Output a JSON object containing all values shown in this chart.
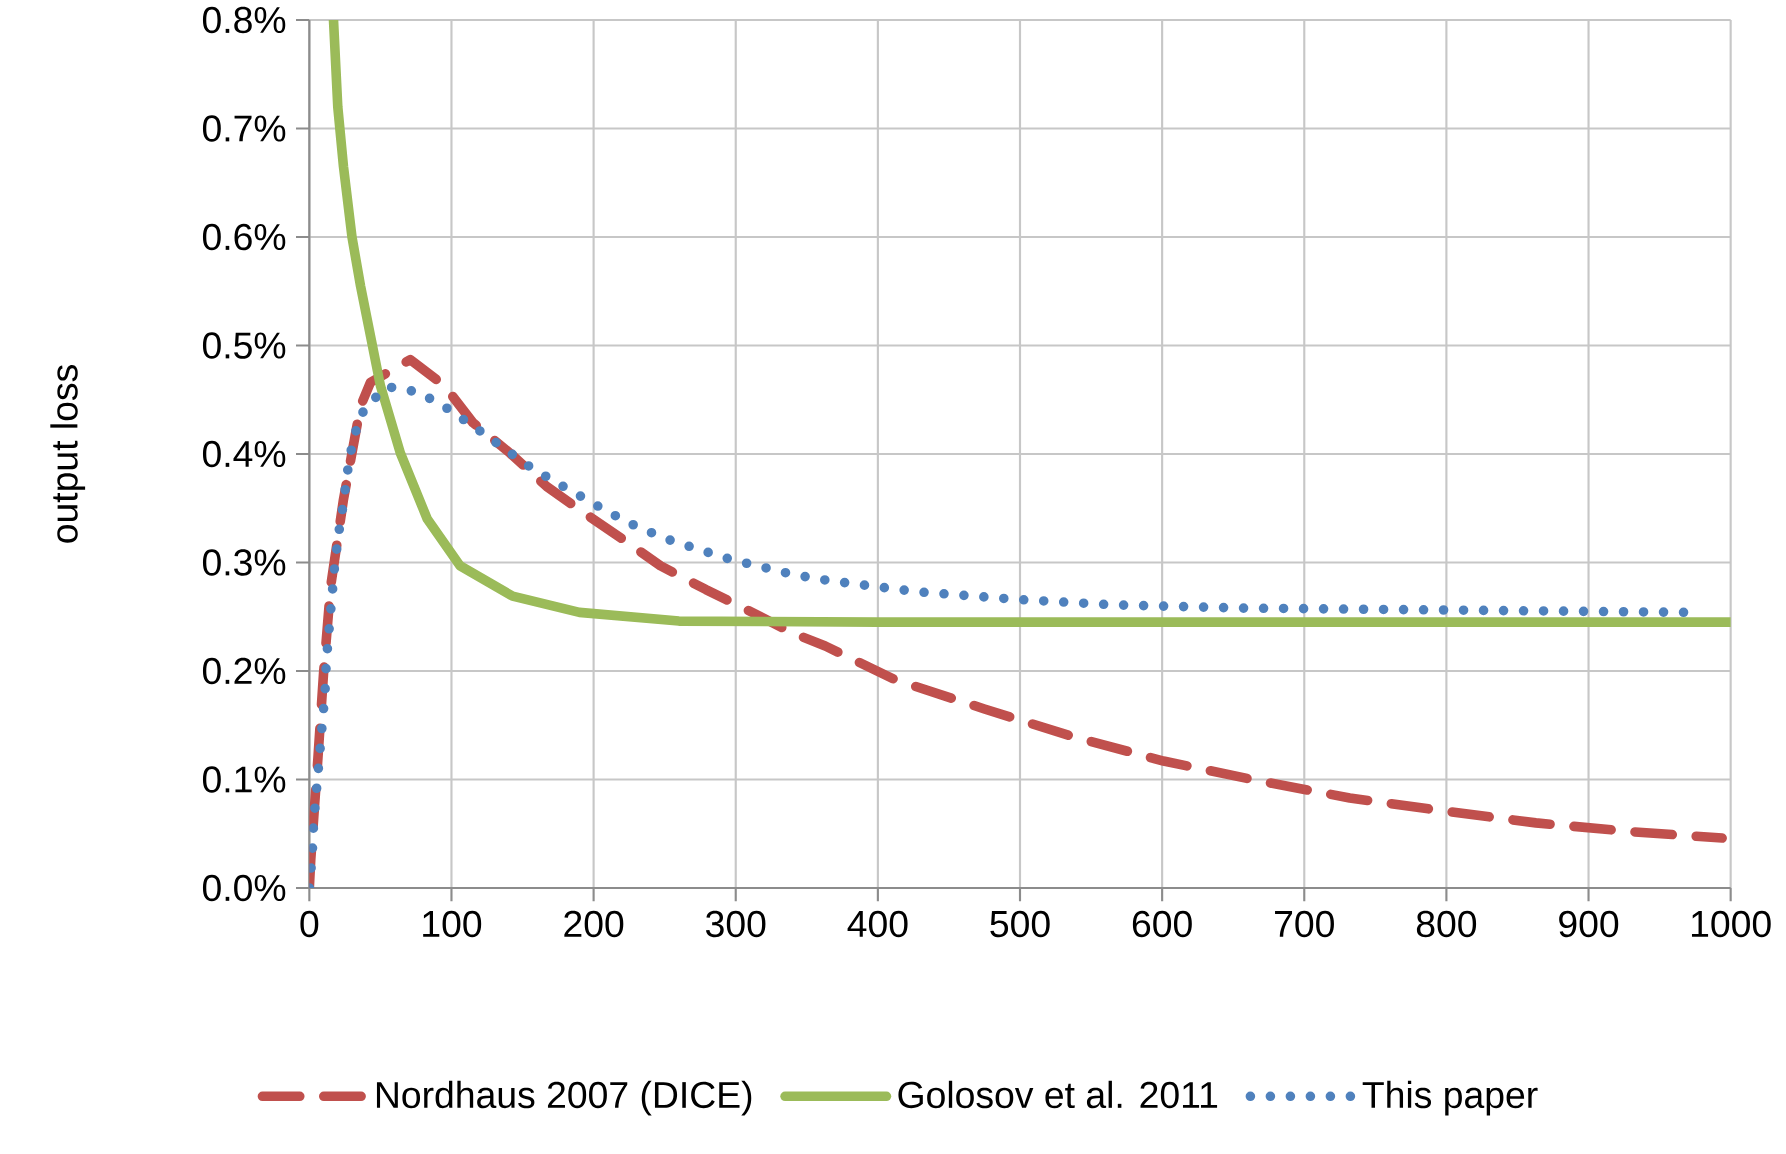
{
  "chart_data": {
    "type": "line",
    "ylabel": "output loss",
    "xlim": [
      0,
      1000
    ],
    "ylim": [
      0,
      0.8
    ],
    "xticks": [
      0,
      100,
      200,
      300,
      400,
      500,
      600,
      700,
      800,
      900,
      1000
    ],
    "yticks": [
      {
        "value": 0,
        "label": "0.0%"
      },
      {
        "value": 0.1,
        "label": "0.1%"
      },
      {
        "value": 0.2,
        "label": "0.2%"
      },
      {
        "value": 0.3,
        "label": "0.3%"
      },
      {
        "value": 0.4,
        "label": "0.4%"
      },
      {
        "value": 0.5,
        "label": "0.5%"
      },
      {
        "value": 0.6,
        "label": "0.6%"
      },
      {
        "value": 0.7,
        "label": "0.7%"
      },
      {
        "value": 0.8,
        "label": "0.8%"
      }
    ],
    "grid": true,
    "legend": "bottom",
    "marker": "none",
    "series": [
      {
        "name": "Nordhaus 2007 (DICE)",
        "color": "#c0504d",
        "line_style": "dashed",
        "x": [
          0,
          1,
          6,
          10,
          15,
          24,
          36,
          43,
          71,
          95,
          115,
          141,
          167,
          193,
          221,
          247,
          279,
          307,
          340,
          363,
          412,
          475,
          536,
          601,
          667,
          732,
          798,
          863,
          929,
          994
        ],
        "values": [
          0,
          0.026,
          0.119,
          0.198,
          0.278,
          0.358,
          0.444,
          0.466,
          0.487,
          0.463,
          0.429,
          0.401,
          0.37,
          0.346,
          0.321,
          0.297,
          0.275,
          0.257,
          0.235,
          0.223,
          0.192,
          0.165,
          0.14,
          0.117,
          0.099,
          0.083,
          0.071,
          0.06,
          0.052,
          0.046
        ]
      },
      {
        "name": "Golosov et al. 2011",
        "color": "#9bbb59",
        "line_style": "solid",
        "x": [
          17,
          20,
          24,
          30,
          36,
          50,
          64,
          83,
          106,
          143,
          190,
          260,
          400,
          600,
          1000
        ],
        "values": [
          0.8,
          0.72,
          0.665,
          0.6,
          0.555,
          0.463,
          0.401,
          0.34,
          0.297,
          0.269,
          0.254,
          0.246,
          0.245,
          0.245,
          0.245
        ]
      },
      {
        "name": "This paper",
        "color": "#4f81bd",
        "line_style": "dotted",
        "x": [
          0,
          2,
          3,
          5,
          7,
          9,
          11,
          12,
          14,
          16,
          18,
          21,
          24,
          27,
          31,
          39,
          55,
          77,
          97,
          116,
          134,
          153,
          172,
          191,
          211,
          232,
          253,
          274,
          296,
          318,
          340,
          362,
          385,
          428,
          497,
          565,
          656,
          973
        ],
        "values": [
          0,
          0.03,
          0.06,
          0.09,
          0.12,
          0.15,
          0.18,
          0.21,
          0.24,
          0.27,
          0.3,
          0.33,
          0.355,
          0.385,
          0.415,
          0.443,
          0.462,
          0.457,
          0.442,
          0.425,
          0.408,
          0.39,
          0.375,
          0.361,
          0.346,
          0.332,
          0.321,
          0.312,
          0.303,
          0.296,
          0.289,
          0.284,
          0.28,
          0.273,
          0.266,
          0.261,
          0.258,
          0.254
        ]
      }
    ]
  }
}
